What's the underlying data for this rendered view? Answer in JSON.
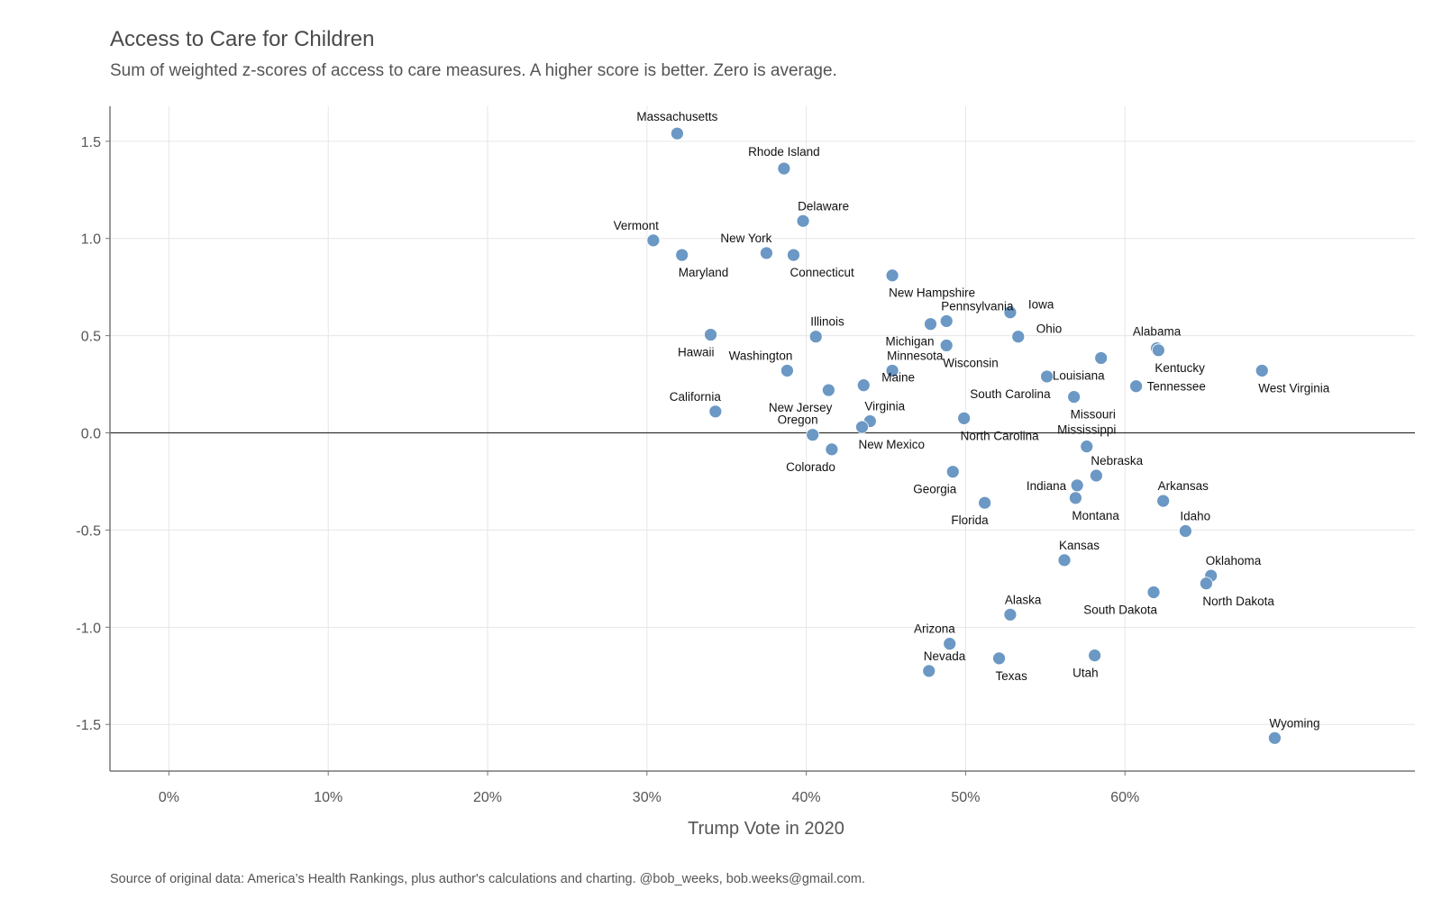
{
  "chart_data": {
    "type": "scatter",
    "title": "Access to Care for Children",
    "subtitle": "Sum of weighted z-scores of access to care measures. A higher score is better. Zero is average.",
    "xlabel": "Trump Vote in 2020",
    "ylabel": "",
    "caption": "Source of original data: America’s Health Rankings, plus author's calculations and charting. @bob_weeks, bob.weeks@gmail.com.",
    "xlim": [
      -0.037,
      0.782
    ],
    "ylim": [
      -1.74,
      1.68
    ],
    "x_ticks": [
      0,
      0.1,
      0.2,
      0.3,
      0.4,
      0.5,
      0.6
    ],
    "x_tick_labels": [
      "0%",
      "10%",
      "20%",
      "30%",
      "40%",
      "50%",
      "60%"
    ],
    "y_ticks": [
      1.5,
      1.0,
      0.5,
      0.0,
      -0.5,
      -1.0,
      -1.5
    ],
    "y_tick_labels": [
      "1.5",
      "1.0",
      "0.5",
      "0.0",
      "-0.5",
      "-1.0",
      "-1.5"
    ],
    "grid": true,
    "reference_line_y": 0,
    "point_color": "#6b98c4",
    "points": [
      {
        "label": "Massachusetts",
        "x": 0.319,
        "y": 1.54,
        "pos": "above"
      },
      {
        "label": "Rhode Island",
        "x": 0.386,
        "y": 1.36,
        "pos": "above"
      },
      {
        "label": "Delaware",
        "x": 0.398,
        "y": 1.09,
        "pos": "above-right"
      },
      {
        "label": "Vermont",
        "x": 0.304,
        "y": 0.99,
        "pos": "above-left"
      },
      {
        "label": "Maryland",
        "x": 0.322,
        "y": 0.915,
        "pos": "below-right"
      },
      {
        "label": "New York",
        "x": 0.375,
        "y": 0.925,
        "pos": "above-left"
      },
      {
        "label": "Connecticut",
        "x": 0.392,
        "y": 0.915,
        "pos": "below-right"
      },
      {
        "label": "New Hampshire",
        "x": 0.454,
        "y": 0.81,
        "pos": "below-right"
      },
      {
        "label": "Iowa",
        "x": 0.528,
        "y": 0.62,
        "pos": "right-up"
      },
      {
        "label": "Pennsylvania",
        "x": 0.488,
        "y": 0.575,
        "pos": "above-right"
      },
      {
        "label": "Michigan",
        "x": 0.478,
        "y": 0.56,
        "pos": "below-left"
      },
      {
        "label": "Ohio",
        "x": 0.533,
        "y": 0.495,
        "pos": "right-up"
      },
      {
        "label": "Hawaii",
        "x": 0.34,
        "y": 0.505,
        "pos": "below-left"
      },
      {
        "label": "Illinois",
        "x": 0.406,
        "y": 0.495,
        "pos": "above-right"
      },
      {
        "label": "Wisconsin",
        "x": 0.488,
        "y": 0.45,
        "pos": "below-right"
      },
      {
        "label": "Alabama",
        "x": 0.62,
        "y": 0.435,
        "pos": "above"
      },
      {
        "label": "Kentucky",
        "x": 0.621,
        "y": 0.425,
        "pos": "below-right"
      },
      {
        "label": "Louisiana",
        "x": 0.585,
        "y": 0.385,
        "pos": "below-left"
      },
      {
        "label": "Washington",
        "x": 0.388,
        "y": 0.32,
        "pos": "above-left"
      },
      {
        "label": "Minnesota",
        "x": 0.454,
        "y": 0.32,
        "pos": "above-right"
      },
      {
        "label": "West Virginia",
        "x": 0.686,
        "y": 0.32,
        "pos": "below-right"
      },
      {
        "label": "South Carolina",
        "x": 0.551,
        "y": 0.29,
        "pos": "below-left"
      },
      {
        "label": "Maine",
        "x": 0.436,
        "y": 0.245,
        "pos": "right-up"
      },
      {
        "label": "Tennessee",
        "x": 0.607,
        "y": 0.24,
        "pos": "right"
      },
      {
        "label": "New Jersey",
        "x": 0.414,
        "y": 0.22,
        "pos": "below-left"
      },
      {
        "label": "Missouri",
        "x": 0.568,
        "y": 0.185,
        "pos": "below-right"
      },
      {
        "label": "California",
        "x": 0.343,
        "y": 0.11,
        "pos": "above-left"
      },
      {
        "label": "Virginia",
        "x": 0.44,
        "y": 0.06,
        "pos": "above-right"
      },
      {
        "label": "North Carolina",
        "x": 0.499,
        "y": 0.075,
        "pos": "below-right"
      },
      {
        "label": "Oregon",
        "x": 0.404,
        "y": -0.01,
        "pos": "above-left"
      },
      {
        "label": "New Mexico",
        "x": 0.435,
        "y": 0.03,
        "pos": "below-right"
      },
      {
        "label": "Mississippi",
        "x": 0.576,
        "y": -0.07,
        "pos": "above"
      },
      {
        "label": "Colorado",
        "x": 0.416,
        "y": -0.085,
        "pos": "below-left"
      },
      {
        "label": "Georgia",
        "x": 0.492,
        "y": -0.2,
        "pos": "below-left"
      },
      {
        "label": "Nebraska",
        "x": 0.582,
        "y": -0.22,
        "pos": "above-right"
      },
      {
        "label": "Indiana",
        "x": 0.57,
        "y": -0.27,
        "pos": "left"
      },
      {
        "label": "Montana",
        "x": 0.569,
        "y": -0.335,
        "pos": "below-right"
      },
      {
        "label": "Arkansas",
        "x": 0.624,
        "y": -0.35,
        "pos": "above-right"
      },
      {
        "label": "Florida",
        "x": 0.512,
        "y": -0.36,
        "pos": "below-left"
      },
      {
        "label": "Idaho",
        "x": 0.638,
        "y": -0.505,
        "pos": "above-right"
      },
      {
        "label": "Kansas",
        "x": 0.562,
        "y": -0.655,
        "pos": "above-right"
      },
      {
        "label": "Oklahoma",
        "x": 0.654,
        "y": -0.735,
        "pos": "above-right"
      },
      {
        "label": "North Dakota",
        "x": 0.651,
        "y": -0.775,
        "pos": "below-right"
      },
      {
        "label": "South Dakota",
        "x": 0.618,
        "y": -0.82,
        "pos": "below-left"
      },
      {
        "label": "Alaska",
        "x": 0.528,
        "y": -0.935,
        "pos": "above-right"
      },
      {
        "label": "Arizona",
        "x": 0.49,
        "y": -1.085,
        "pos": "above-left"
      },
      {
        "label": "Utah",
        "x": 0.581,
        "y": -1.145,
        "pos": "below-left"
      },
      {
        "label": "Texas",
        "x": 0.521,
        "y": -1.16,
        "pos": "below-right"
      },
      {
        "label": "Nevada",
        "x": 0.477,
        "y": -1.225,
        "pos": "above-right"
      },
      {
        "label": "Wyoming",
        "x": 0.694,
        "y": -1.57,
        "pos": "above-right"
      }
    ]
  }
}
